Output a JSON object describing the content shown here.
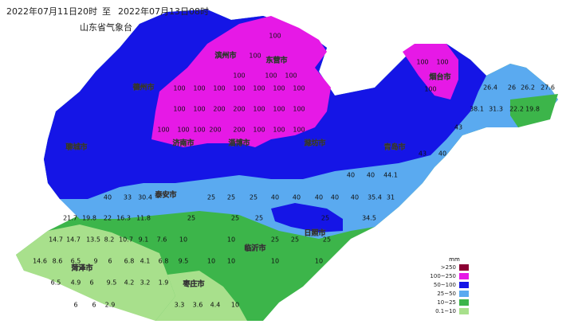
{
  "header": {
    "start_time": "2022年07月11日20时",
    "to": "至",
    "end_time": "2022年07月13日08时",
    "issuer": "山东省气象台"
  },
  "cities": [
    "滨州市",
    "东营市",
    "德州市",
    "聊城市",
    "济南市",
    "淄博市",
    "潍坊市",
    "烟台市",
    "青岛市",
    "泰安市",
    "日照市",
    "临沂市",
    "菏泽市",
    "枣庄市"
  ],
  "map_values": [
    100,
    100,
    100,
    100,
    100,
    100,
    100,
    100,
    100,
    200,
    200,
    100,
    100,
    100,
    100,
    100,
    100,
    200,
    200,
    100,
    100,
    100,
    100,
    100,
    100,
    100,
    100,
    100,
    100,
    100,
    26.4,
    26,
    26.2,
    27.6,
    38.1,
    31.3,
    22.2,
    19.8,
    43,
    40,
    43,
    40,
    40,
    44.1,
    40,
    33,
    30.4,
    25,
    25,
    25,
    40,
    40,
    40,
    40,
    40,
    35.4,
    31,
    21.7,
    19.8,
    22,
    16.3,
    11.8,
    25,
    25,
    25,
    25,
    34.5,
    14.7,
    14.7,
    13.5,
    8.2,
    10.7,
    9.1,
    7.6,
    10,
    10,
    25,
    25,
    25,
    14.6,
    8.6,
    6.5,
    9,
    6,
    6.8,
    4.1,
    6.8,
    9.5,
    10,
    10,
    10,
    10,
    6.5,
    4.9,
    6,
    9.5,
    4.2,
    3.2,
    1.9,
    6,
    6,
    2.9,
    3.3,
    3.6,
    4.4,
    10
  ],
  "legend": {
    "unit": "mm",
    "items": [
      ">250",
      "100~250",
      "50~100",
      "25~50",
      "10~25",
      "0.1~10"
    ]
  }
}
